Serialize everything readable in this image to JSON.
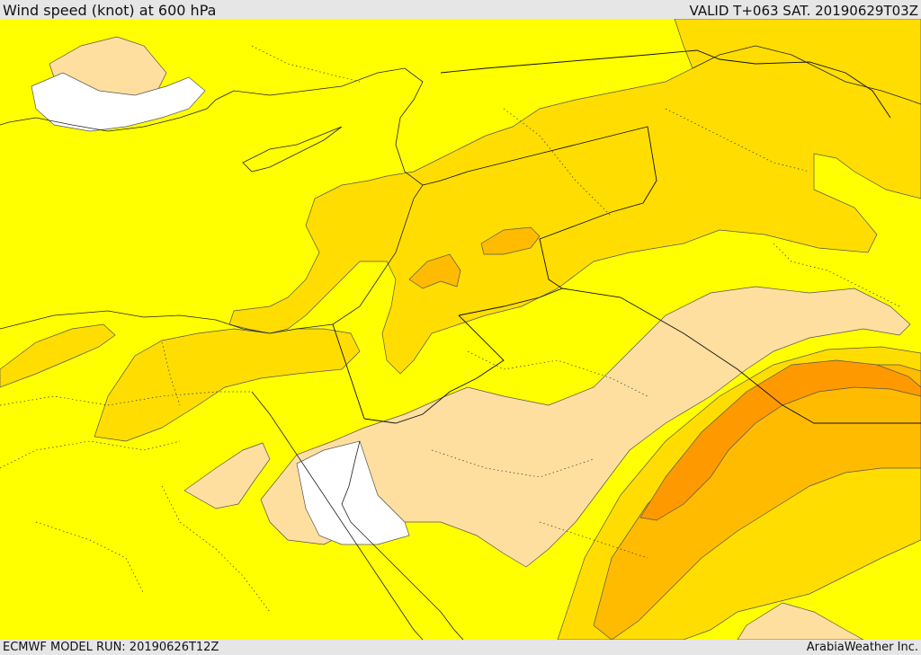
{
  "header": {
    "title": "Wind speed (knot) at 600 hPa",
    "valid": "VALID T+063 SAT. 20190629T03Z"
  },
  "footer": {
    "model_run": "ECMWF MODEL RUN: 20190626T12Z",
    "credit": "ArabiaWeather Inc."
  },
  "colors": {
    "background_band": "#ffff00",
    "band_2": "#ffdd00",
    "band_3": "#ffbb00",
    "band_4": "#ff9900",
    "light_band": "#ffdfa0",
    "calm": "#ffffff",
    "frame": "#e6e6e6"
  }
}
